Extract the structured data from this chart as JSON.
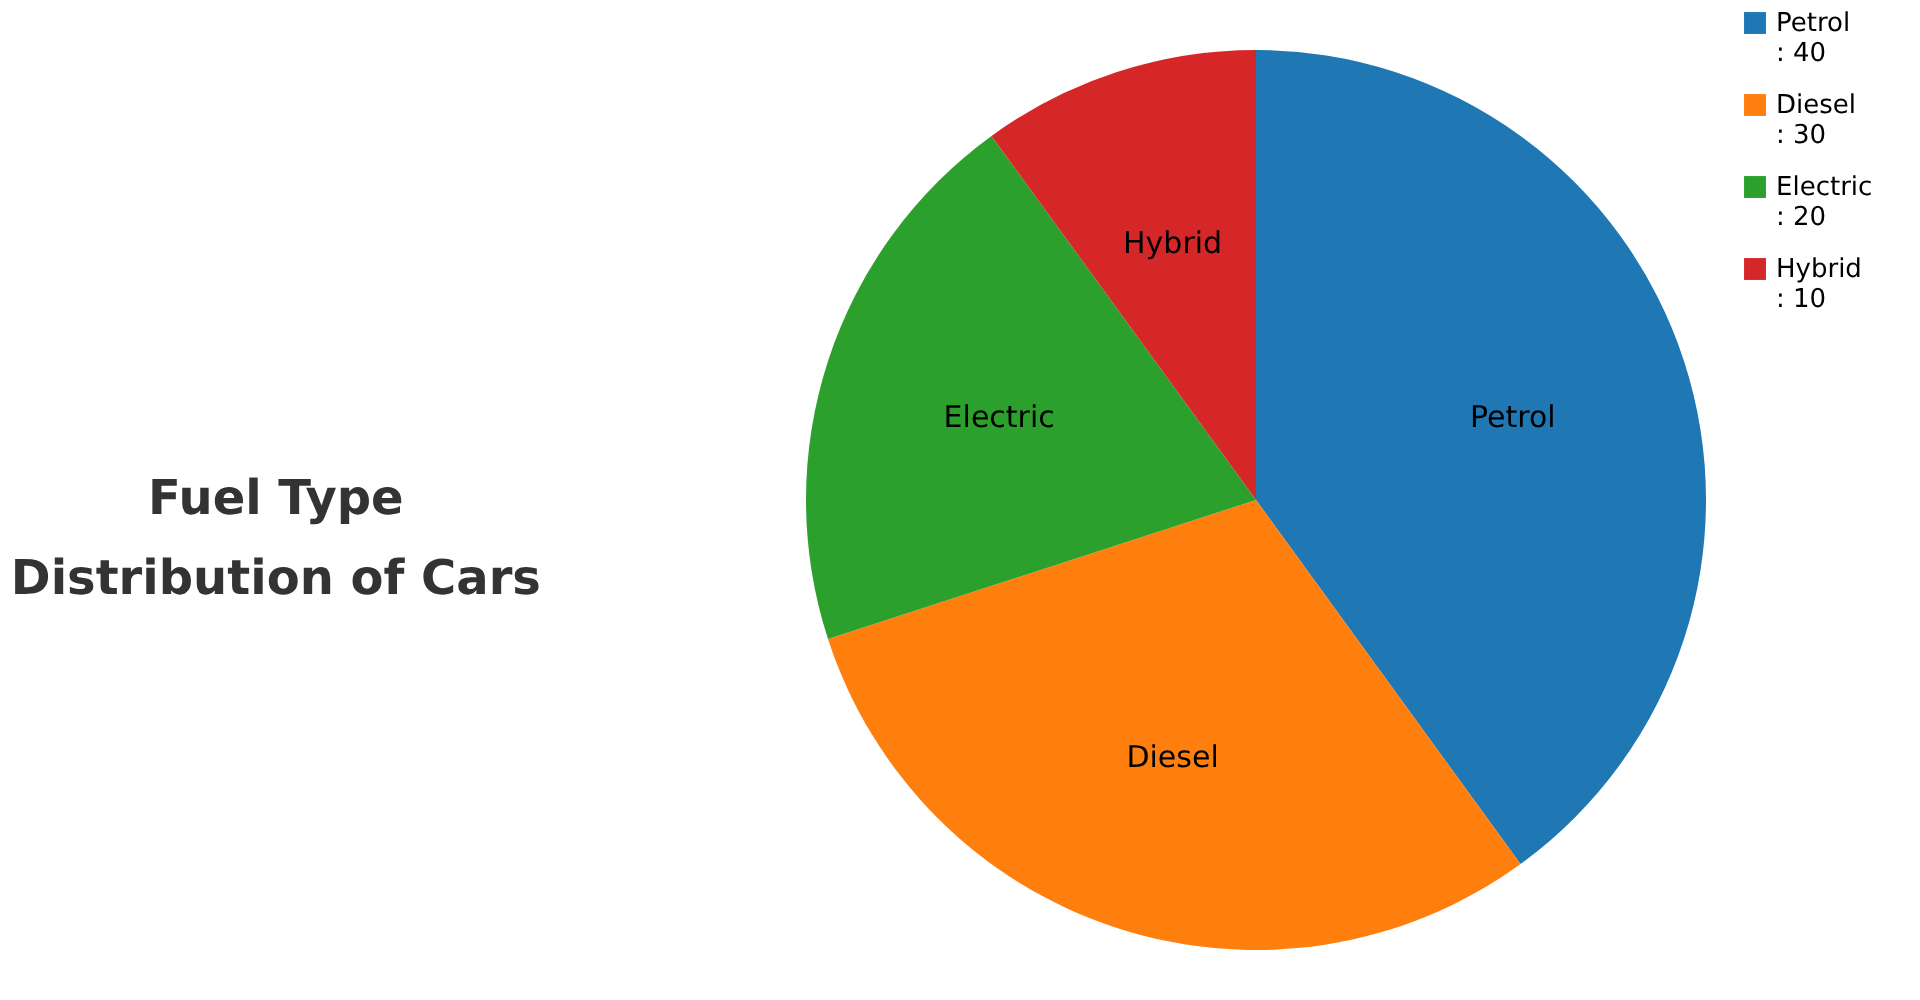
{
  "chart_data": {
    "type": "pie",
    "title": "Fuel Type Distribution of Cars",
    "categories": [
      "Petrol",
      "Diesel",
      "Electric",
      "Hybrid"
    ],
    "values": [
      40,
      30,
      20,
      10
    ],
    "colors": [
      "#1f77b4",
      "#ff7f0e",
      "#2ca02c",
      "#d62728"
    ],
    "value_labels": [
      ": 40",
      ": 30",
      ": 20",
      ": 10"
    ],
    "legend": "right"
  }
}
